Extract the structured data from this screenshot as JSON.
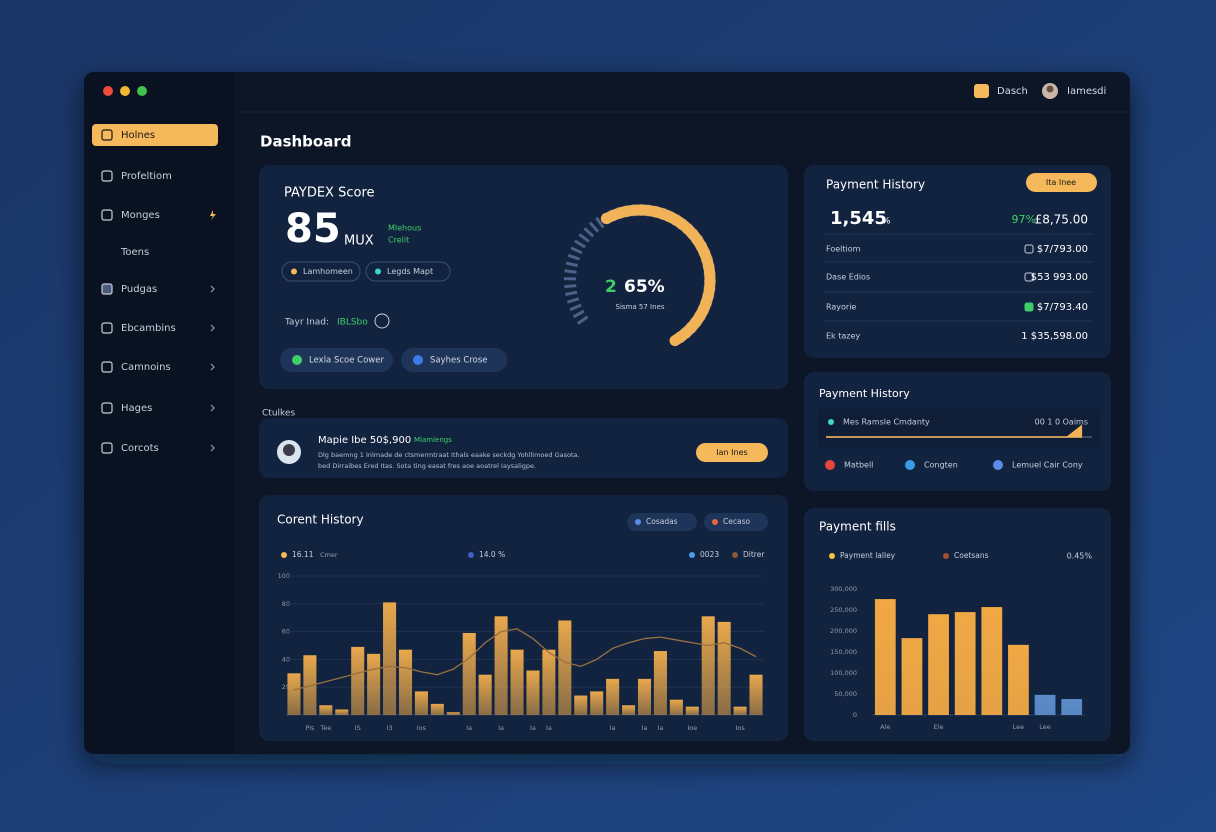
{
  "topbar": {
    "search": "Dasch",
    "user": "Iamesdi"
  },
  "sidebar": {
    "items": [
      "Holnes",
      "Profeltiom",
      "Monges",
      "Toens",
      "Pudgas",
      "Ebcambins",
      "Camnoins",
      "Hages",
      "Corcots"
    ]
  },
  "page_title": "Dashboard",
  "score_card": {
    "title": "PAYDEX Score",
    "score": 85,
    "unit": "MUX",
    "note": [
      "Mlehous",
      "Crelit"
    ],
    "pills": [
      "Lamhomeen",
      "Legds Mapt"
    ],
    "trend_label": "Tayr Inad:",
    "trend_value": "IBLSbo",
    "buttons": [
      "Lexla Scoe Cower",
      "Sayhes Crose"
    ],
    "gauge": {
      "value": 65,
      "value_label": "65%",
      "prefix": "2",
      "caption": "Sisma 57 Ines"
    }
  },
  "payment_history": {
    "title": "Payment History",
    "button": "Ita Inee",
    "total": "1,545",
    "total_unit": "%",
    "change": "97%",
    "amount": "£8,75.00",
    "rows": [
      {
        "label": "Foeltiom",
        "value": "$7/793.00"
      },
      {
        "label": "Dase Edios",
        "value": "$53 993.00"
      },
      {
        "label": "Rayorie",
        "value": "$7/793.40"
      },
      {
        "label": "Ek tazey",
        "value": "1 $35,598.00"
      }
    ]
  },
  "section_label": "Ctulkes",
  "alert": {
    "title": "Mapie Ibe 50$,900",
    "tag": "Mlamlengs",
    "lines": [
      "Dlg baemng 1 Inlmade de ctsmermtraat Ithals eaake seckdg Yohllimoed Gasota.",
      "bed Dirraibes Ered Itas. Sota ting easat fres aoe aoatrel Iaysaligpe."
    ],
    "button": "Ian Ines"
  },
  "payment_history_2": {
    "title": "Payment History",
    "progress_label": "Mes Ramsle Cmdanty",
    "progress_value": "00 1 0 Oaims",
    "progress": 96,
    "legend": [
      "Matbell",
      "Congten",
      "Lemuel Cair Cony"
    ]
  },
  "chart_data": [
    {
      "type": "bar",
      "title": "Corent History",
      "filters": [
        "Cosadas",
        "Cecaso"
      ],
      "legend": [
        {
          "label": "16.11",
          "note": "Cmer",
          "color": "#f5b85a"
        },
        {
          "label": "14.0 %",
          "color": "#3d5fc4"
        },
        {
          "label": "0023",
          "color": "#4a9be8"
        },
        {
          "label": "Ditrer",
          "color": "#8a5a3a"
        }
      ],
      "categories": [
        null,
        "Pls",
        "Tee",
        null,
        "IS",
        null,
        "I3",
        null,
        "Ios",
        null,
        null,
        "Ia",
        null,
        "Ia",
        null,
        "Ia",
        "Ia",
        null,
        null,
        null,
        "Ia",
        null,
        "Ia",
        "Ia",
        null,
        "Ioe",
        null,
        null,
        "Ios",
        null
      ],
      "series": [
        {
          "type": "bar",
          "color": "#e9a84c",
          "values": [
            30,
            43,
            7,
            4,
            49,
            44,
            81,
            47,
            17,
            8,
            2,
            59,
            29,
            71,
            47,
            32,
            47,
            68,
            14,
            17,
            26,
            7,
            26,
            46,
            11,
            6,
            71,
            67,
            6,
            29
          ]
        },
        {
          "type": "line",
          "color": "#9a7040",
          "values": [
            18,
            21,
            24,
            27,
            30,
            33,
            35,
            34,
            31,
            29,
            33,
            41,
            52,
            60,
            62,
            55,
            45,
            38,
            35,
            40,
            48,
            52,
            55,
            56,
            54,
            52,
            50,
            52,
            48,
            42
          ]
        }
      ],
      "ylim": [
        0,
        100
      ],
      "yticks": [
        20,
        40,
        60,
        80,
        100
      ],
      "grid": true
    },
    {
      "type": "bar",
      "title": "Payment fills",
      "legend": [
        {
          "label": "Payment lalley",
          "color": "#f5c542"
        },
        {
          "label": "Coetsans",
          "color": "#a0522d"
        }
      ],
      "summary": "0.45%",
      "categories": [
        "Ale",
        null,
        "Ele",
        null,
        null,
        "Lee",
        "Lee",
        null
      ],
      "series": [
        {
          "type": "bar",
          "colors": [
            "#f0a844",
            "#f0a844",
            "#f0a844",
            "#f0a844",
            "#f0a844",
            "#f0a844",
            "#5a8cc8",
            "#5a8cc8"
          ],
          "values": [
            276000,
            183000,
            240000,
            245000,
            257000,
            167000,
            48000,
            38000
          ]
        }
      ],
      "ylim": [
        0,
        300000
      ],
      "yticks": [
        0,
        {
          "value": 50000,
          "label": "50,000"
        },
        {
          "value": 100000,
          "label": "100,000"
        },
        {
          "value": 150000,
          "label": "150,000"
        },
        {
          "value": 200000,
          "label": "200,000"
        },
        {
          "value": 250000,
          "label": "250,000"
        },
        {
          "value": 300000,
          "label": "300,000"
        }
      ],
      "grid": false
    }
  ]
}
